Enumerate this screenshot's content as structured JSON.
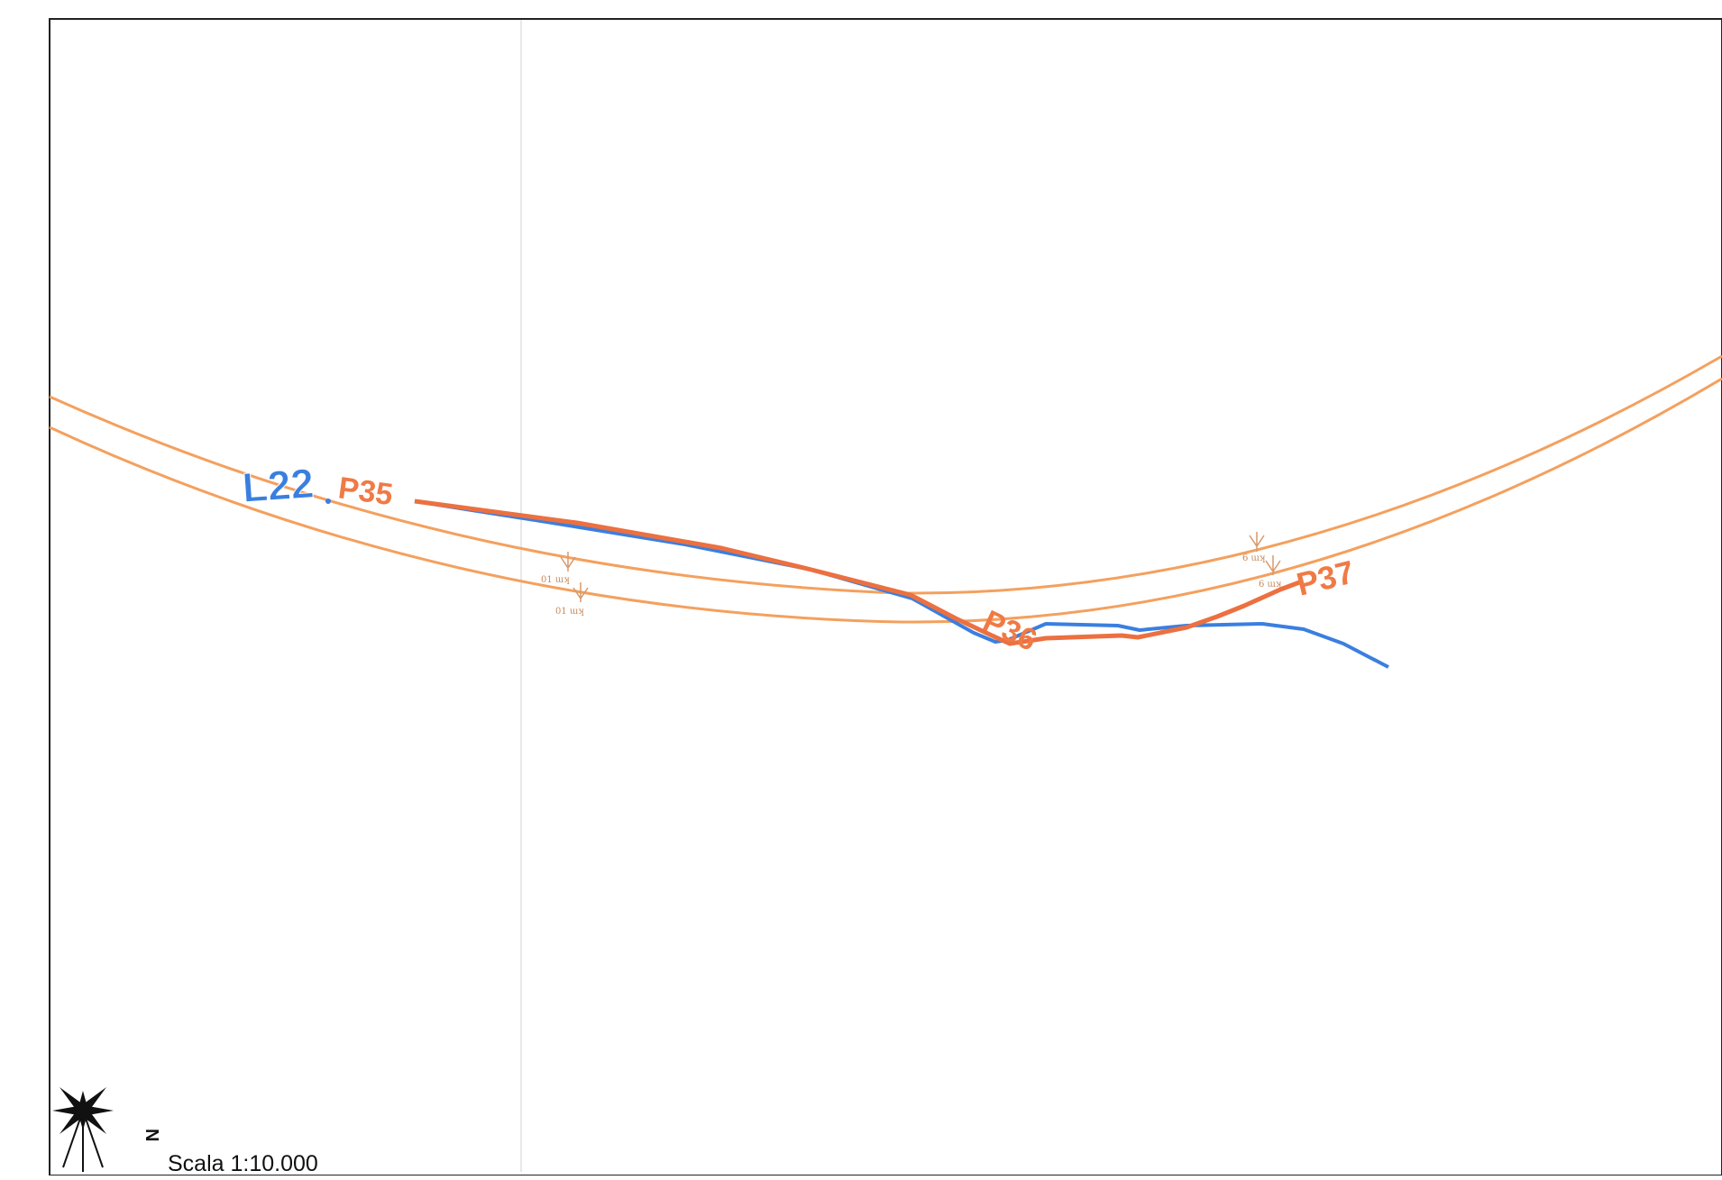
{
  "map": {
    "line_label": "L22",
    "point_labels": [
      "P35",
      "P36",
      "P37"
    ],
    "km_markers": [
      {
        "text": "01 ɯʞ"
      },
      {
        "text": "01 ɯʞ"
      },
      {
        "text": "6 ɯʞ"
      },
      {
        "text": "6 ɯʞ"
      }
    ],
    "north_label": "N",
    "scale_text": "Scala 1:10.000",
    "colors": {
      "road_lines": "#f4a05e",
      "route_orange": "#ec7040",
      "route_blue": "#3a7fe0",
      "frame": "#222222"
    },
    "icons": {
      "compass": "compass-rose-icon"
    }
  }
}
